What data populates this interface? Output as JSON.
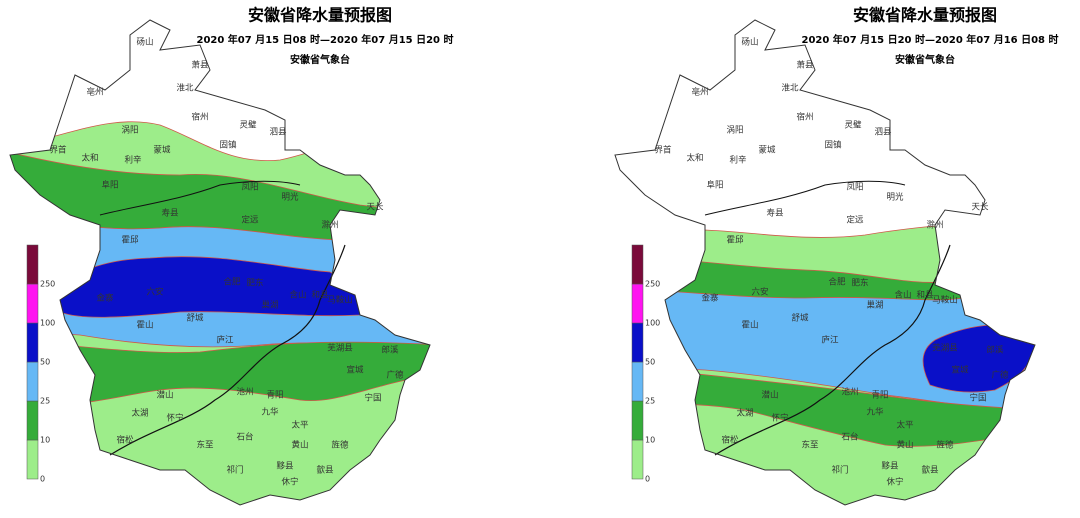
{
  "maps": [
    {
      "title": "安徽省降水量预报图",
      "period": "2020 年07 月15 日08 时—2020 年07 月15 日20 时",
      "issuer": "安徽省气象台",
      "cities": [
        "砀山",
        "萧县",
        "淮北",
        "亳州",
        "宿州",
        "涡阳",
        "灵璧",
        "泗县",
        "蒙城",
        "固镇",
        "界首",
        "太和",
        "利辛",
        "阜阳",
        "凤阳",
        "明光",
        "天长",
        "寿县",
        "定远",
        "滁州",
        "霍邱",
        "六安",
        "金寨",
        "合肥",
        "肥东",
        "巢湖",
        "含山",
        "和县",
        "马鞍山",
        "霍山",
        "舒城",
        "庐江",
        "芜湖县",
        "宣城",
        "郎溪",
        "广德",
        "潜山",
        "池州",
        "青阳",
        "宁国",
        "太湖",
        "怀宁",
        "九华",
        "宿松",
        "东至",
        "石台",
        "太平",
        "黄山",
        "旌德",
        "祁门",
        "黟县",
        "歙县",
        "休宁"
      ]
    },
    {
      "title": "安徽省降水量预报图",
      "period": "2020 年07 月15 日20 时—2020 年07 月16 日08 时",
      "issuer": "安徽省气象台",
      "cities": [
        "砀山",
        "萧县",
        "淮北",
        "亳州",
        "宿州",
        "涡阳",
        "灵璧",
        "泗县",
        "蒙城",
        "固镇",
        "界首",
        "太和",
        "利辛",
        "阜阳",
        "凤阳",
        "明光",
        "天长",
        "寿县",
        "定远",
        "滁州",
        "霍邱",
        "六安",
        "金寨",
        "合肥",
        "肥东",
        "巢湖",
        "含山",
        "和县",
        "马鞍山",
        "霍山",
        "舒城",
        "庐江",
        "芜湖县",
        "宣城",
        "郎溪",
        "广德",
        "潜山",
        "池州",
        "青阳",
        "宁国",
        "太湖",
        "怀宁",
        "九华",
        "宿松",
        "东至",
        "石台",
        "太平",
        "黄山",
        "旌德",
        "祁门",
        "黟县",
        "歙县",
        "休宁"
      ]
    }
  ],
  "legend": {
    "levels": [
      0,
      10,
      25,
      50,
      100,
      250
    ],
    "colors": [
      "#9ded8a",
      "#35ac3a",
      "#66b8f5",
      "#0a10c8",
      "#ff14f0",
      "#7a0a3a"
    ]
  }
}
